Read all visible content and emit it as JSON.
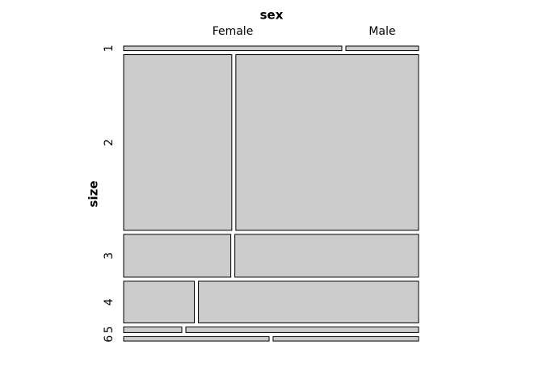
{
  "chart_data": {
    "type": "mosaic",
    "x_label": "sex",
    "y_label": "size",
    "categories": [
      "1",
      "2",
      "3",
      "4",
      "5",
      "6"
    ],
    "series": [
      {
        "name": "Female",
        "color": "#cccccc",
        "values": [
          3,
          58,
          14,
          9,
          1,
          2
        ]
      },
      {
        "name": "Male",
        "color": "#cccccc",
        "values": [
          1,
          98,
          24,
          28,
          4,
          2
        ]
      }
    ]
  }
}
